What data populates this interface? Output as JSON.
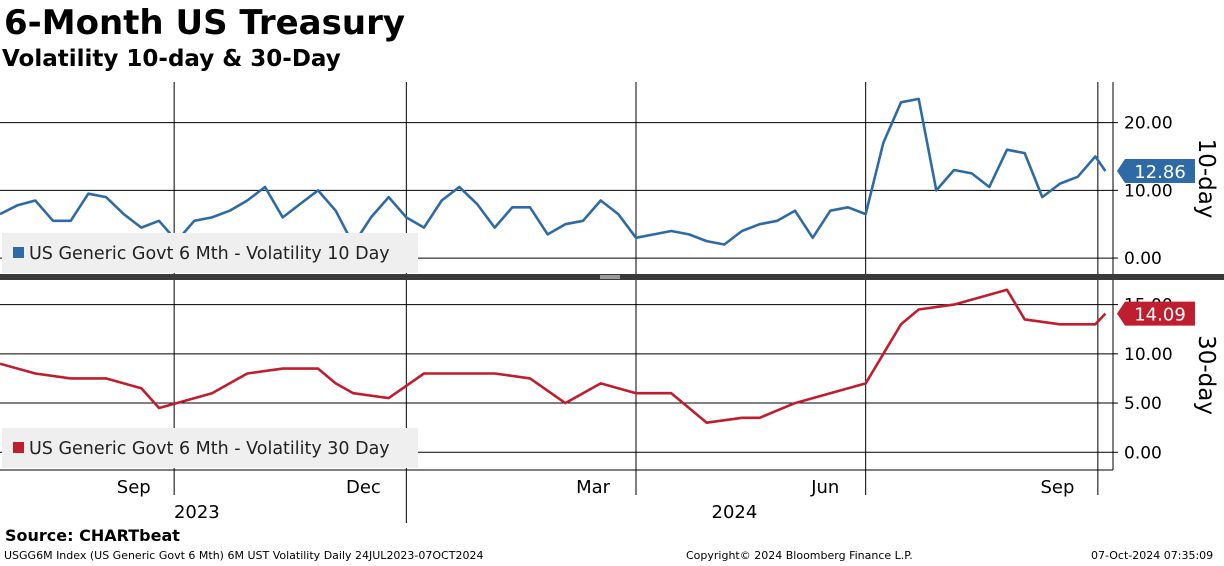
{
  "title": "6-Month US Treasury",
  "subtitle": "Volatility 10-day & 30-Day",
  "source": "Source: CHARTbeat",
  "footer": {
    "left": "USGG6M Index (US Generic Govt 6 Mth) 6M UST Volatility  Daily 24JUL2023-07OCT2024",
    "center": "Copyright© 2024 Bloomberg Finance L.P.",
    "right": "07-Oct-2024 07:35:09"
  },
  "colors": {
    "series_10d": "#2e6aa6",
    "series_30d": "#be1e2d",
    "legend_bg": "#efefef"
  },
  "chart_data": [
    {
      "type": "line",
      "panel_label": "10-day",
      "ylim": [
        -2.5,
        26
      ],
      "yticks": [
        0,
        10,
        20
      ],
      "ytick_labels": [
        "0.00",
        "10.00",
        "20.00"
      ],
      "grid": true,
      "legend_position": "bottom-left",
      "last_value_label": "12.86",
      "series": [
        {
          "name": "US Generic Govt 6 Mth - Volatility 10 Day",
          "x": [
            "2023-07-24",
            "2023-07-31",
            "2023-08-07",
            "2023-08-14",
            "2023-08-21",
            "2023-08-28",
            "2023-09-04",
            "2023-09-11",
            "2023-09-18",
            "2023-09-25",
            "2023-10-02",
            "2023-10-09",
            "2023-10-16",
            "2023-10-23",
            "2023-10-30",
            "2023-11-06",
            "2023-11-13",
            "2023-11-20",
            "2023-11-27",
            "2023-12-04",
            "2023-12-11",
            "2023-12-18",
            "2023-12-25",
            "2024-01-01",
            "2024-01-08",
            "2024-01-15",
            "2024-01-22",
            "2024-01-29",
            "2024-02-05",
            "2024-02-12",
            "2024-02-19",
            "2024-02-26",
            "2024-03-04",
            "2024-03-11",
            "2024-03-18",
            "2024-03-25",
            "2024-04-01",
            "2024-04-08",
            "2024-04-15",
            "2024-04-22",
            "2024-04-29",
            "2024-05-06",
            "2024-05-13",
            "2024-05-20",
            "2024-05-27",
            "2024-06-03",
            "2024-06-10",
            "2024-06-17",
            "2024-06-24",
            "2024-07-01",
            "2024-07-08",
            "2024-07-15",
            "2024-07-22",
            "2024-07-29",
            "2024-08-05",
            "2024-08-12",
            "2024-08-19",
            "2024-08-26",
            "2024-09-02",
            "2024-09-09",
            "2024-09-16",
            "2024-09-23",
            "2024-09-30",
            "2024-10-04"
          ],
          "values": [
            6.5,
            7.8,
            8.5,
            5.5,
            5.5,
            9.5,
            9.0,
            6.5,
            4.5,
            5.5,
            2.5,
            5.5,
            6.0,
            7.0,
            8.5,
            10.5,
            6.0,
            8.0,
            10.0,
            7.0,
            2.0,
            6.0,
            9.0,
            6.0,
            4.5,
            8.5,
            10.5,
            8.0,
            4.5,
            7.5,
            7.5,
            3.5,
            5.0,
            5.5,
            8.5,
            6.5,
            3.0,
            3.5,
            4.0,
            3.5,
            2.5,
            2.0,
            4.0,
            5.0,
            5.5,
            7.0,
            3.0,
            7.0,
            7.5,
            6.5,
            17.0,
            23.0,
            23.5,
            10.0,
            13.0,
            12.5,
            10.5,
            16.0,
            15.5,
            9.0,
            11.0,
            12.0,
            15.0,
            12.86
          ]
        }
      ]
    },
    {
      "type": "line",
      "panel_label": "30-day",
      "ylim": [
        -1.8,
        17.5
      ],
      "yticks": [
        0,
        5,
        10,
        15
      ],
      "ytick_labels": [
        "0.00",
        "5.00",
        "10.00",
        "15.00"
      ],
      "grid": true,
      "legend_position": "bottom-left",
      "last_value_label": "14.09",
      "series": [
        {
          "name": "US Generic Govt 6 Mth - Volatility 30 Day",
          "x": [
            "2023-07-24",
            "2023-08-07",
            "2023-08-21",
            "2023-09-04",
            "2023-09-18",
            "2023-09-25",
            "2023-10-02",
            "2023-10-16",
            "2023-10-30",
            "2023-11-13",
            "2023-11-27",
            "2023-12-04",
            "2023-12-11",
            "2023-12-25",
            "2024-01-08",
            "2024-01-22",
            "2024-02-05",
            "2024-02-19",
            "2024-03-04",
            "2024-03-11",
            "2024-03-18",
            "2024-04-01",
            "2024-04-15",
            "2024-04-29",
            "2024-05-13",
            "2024-05-20",
            "2024-06-03",
            "2024-06-17",
            "2024-07-01",
            "2024-07-15",
            "2024-07-22",
            "2024-08-05",
            "2024-08-19",
            "2024-08-26",
            "2024-09-02",
            "2024-09-16",
            "2024-09-30",
            "2024-10-04"
          ],
          "values": [
            9.0,
            8.0,
            7.5,
            7.5,
            6.5,
            4.5,
            5.0,
            6.0,
            8.0,
            8.5,
            8.5,
            7.0,
            6.0,
            5.5,
            8.0,
            8.0,
            8.0,
            7.5,
            5.0,
            6.0,
            7.0,
            6.0,
            6.0,
            3.0,
            3.5,
            3.5,
            5.0,
            6.0,
            7.0,
            13.0,
            14.5,
            15.0,
            16.0,
            16.5,
            13.5,
            13.0,
            13.0,
            14.09
          ]
        }
      ]
    }
  ],
  "x_axis": {
    "months": [
      {
        "label": "Sep",
        "date": "2023-09-15"
      },
      {
        "label": "Dec",
        "date": "2023-12-15"
      },
      {
        "label": "Mar",
        "date": "2024-03-15"
      },
      {
        "label": "Jun",
        "date": "2024-06-15"
      },
      {
        "label": "Sep",
        "date": "2024-09-15"
      }
    ],
    "years": [
      {
        "label": "2023",
        "date": "2023-10-10"
      },
      {
        "label": "2024",
        "date": "2024-05-10"
      }
    ],
    "start": "2023-07-24",
    "end": "2024-10-07"
  }
}
